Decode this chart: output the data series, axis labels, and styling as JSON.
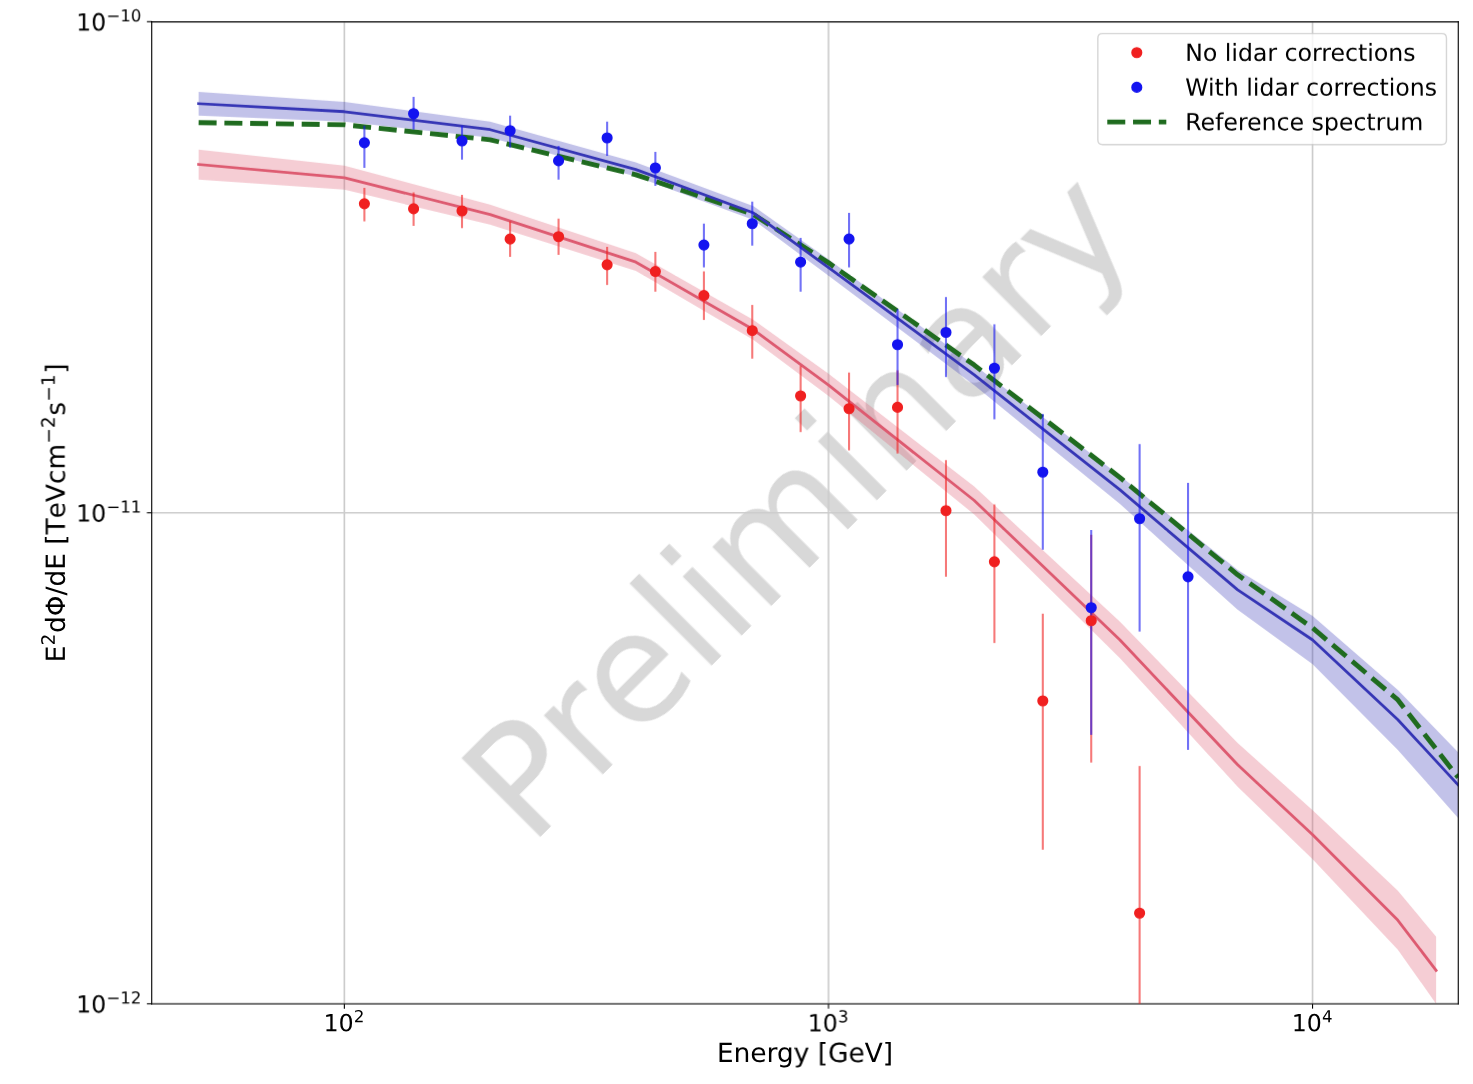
{
  "chart_data": {
    "type": "scatter",
    "xlabel": "Energy [GeV]",
    "ylabel": "E$^{2}$dΦ/dE [TeVcm$^{−2}$s$^{−1}$]",
    "log": "xy",
    "xlim": [
      40,
      20000
    ],
    "ylim": [
      1e-12,
      1e-10
    ],
    "xticks": [
      {
        "value": 100,
        "label": "10$^{2}$"
      },
      {
        "value": 1000,
        "label": "10$^{3}$"
      },
      {
        "value": 10000,
        "label": "10$^{4}$"
      }
    ],
    "yticks": [
      {
        "value": 1e-12,
        "label": "10$^{−12}$"
      },
      {
        "value": 1e-11,
        "label": "10$^{−11}$"
      },
      {
        "value": 1e-10,
        "label": "10$^{−10}$"
      }
    ],
    "grid": true,
    "legend": "top right",
    "marker": "circle",
    "annotations": [
      "Preliminary"
    ],
    "series": [
      {
        "name": "No lidar corrections",
        "color": "#f02020",
        "x": [
          110,
          139,
          175,
          220,
          277,
          349,
          439,
          553,
          696,
          876,
          1103,
          1389,
          1749,
          2202,
          2772,
          3490,
          4393
        ],
        "values": [
          4.26e-11,
          4.16e-11,
          4.12e-11,
          3.61e-11,
          3.65e-11,
          3.2e-11,
          3.1e-11,
          2.77e-11,
          2.35e-11,
          1.73e-11,
          1.63e-11,
          1.64e-11,
          1.01e-11,
          7.95e-12,
          4.14e-12,
          6.03e-12,
          1.53e-12
        ],
        "errors": [
          [
            3.92e-11,
            4.59e-11
          ],
          [
            3.84e-11,
            4.49e-11
          ],
          [
            3.8e-11,
            4.44e-11
          ],
          [
            3.32e-11,
            3.92e-11
          ],
          [
            3.35e-11,
            3.97e-11
          ],
          [
            2.91e-11,
            3.48e-11
          ],
          [
            2.82e-11,
            3.4e-11
          ],
          [
            2.47e-11,
            3.1e-11
          ],
          [
            2.06e-11,
            2.65e-11
          ],
          [
            1.46e-11,
            1.99e-11
          ],
          [
            1.34e-11,
            1.93e-11
          ],
          [
            1.32e-11,
            1.95e-11
          ],
          [
            7.41e-12,
            1.28e-11
          ],
          [
            5.43e-12,
            1.04e-11
          ],
          [
            2.06e-12,
            6.23e-12
          ],
          [
            3.1e-12,
            9.02e-12
          ],
          [
            1e-12,
            3.05e-12
          ]
        ]
      },
      {
        "name": "With lidar corrections",
        "color": "#1414f0",
        "x": [
          110,
          139,
          175,
          220,
          277,
          349,
          439,
          553,
          696,
          876,
          1103,
          1389,
          1749,
          2202,
          2772,
          3490,
          4393,
          5531
        ],
        "values": [
          5.67e-11,
          6.5e-11,
          5.72e-11,
          6e-11,
          5.21e-11,
          5.8e-11,
          5.04e-11,
          3.51e-11,
          3.88e-11,
          3.24e-11,
          3.61e-11,
          2.2e-11,
          2.33e-11,
          1.97e-11,
          1.21e-11,
          6.41e-12,
          9.73e-12,
          7.41e-12
        ],
        "errors": [
          [
            5.04e-11,
            6.14e-11
          ],
          [
            6.03e-11,
            7.03e-11
          ],
          [
            5.24e-11,
            6.14e-11
          ],
          [
            5.54e-11,
            6.44e-11
          ],
          [
            4.77e-11,
            5.59e-11
          ],
          [
            5.33e-11,
            6.26e-11
          ],
          [
            4.63e-11,
            5.43e-11
          ],
          [
            3.16e-11,
            3.88e-11
          ],
          [
            3.5e-11,
            4.3e-11
          ],
          [
            2.82e-11,
            3.63e-11
          ],
          [
            3.16e-11,
            4.08e-11
          ],
          [
            1.82e-11,
            2.6e-11
          ],
          [
            1.89e-11,
            2.75e-11
          ],
          [
            1.55e-11,
            2.42e-11
          ],
          [
            8.41e-12,
            1.59e-11
          ],
          [
            3.53e-12,
            9.23e-12
          ],
          [
            5.73e-12,
            1.38e-11
          ],
          [
            3.29e-12,
            1.15e-11
          ]
        ]
      },
      {
        "name": "Reference spectrum",
        "type": "line",
        "color": "#1f6b1f",
        "line_style": "dashed",
        "marker": "none",
        "x": [
          50,
          100,
          200,
          400,
          700,
          1000,
          2000,
          4000,
          7000,
          10000,
          15000,
          20000
        ],
        "values": [
          6.23e-11,
          6.17e-11,
          5.75e-11,
          4.88e-11,
          4.05e-11,
          3.23e-11,
          2e-11,
          1.18e-11,
          7.48e-12,
          5.83e-12,
          4.16e-12,
          2.89e-12
        ]
      },
      {
        "type": "line",
        "color": "#3535b5",
        "line_style": "solid",
        "marker": "none",
        "x": [
          50,
          100,
          200,
          400,
          700,
          1000,
          2000,
          4000,
          7000,
          10000,
          15000,
          20000
        ],
        "values": [
          6.81e-11,
          6.56e-11,
          6.03e-11,
          5e-11,
          4.08e-11,
          3.16e-11,
          1.91e-11,
          1.114e-11,
          6.97e-12,
          5.51e-12,
          3.79e-12,
          2.79e-12
        ],
        "lower": [
          6.44e-11,
          6.26e-11,
          5.81e-11,
          4.84e-11,
          3.95e-11,
          3.04e-11,
          1.82e-11,
          1.043e-11,
          6.35e-12,
          4.92e-12,
          3.29e-12,
          2.39e-12
        ],
        "upper": [
          7.2e-11,
          6.87e-11,
          6.26e-11,
          5.17e-11,
          4.21e-11,
          3.28e-11,
          2e-11,
          1.19e-11,
          7.65e-12,
          6.17e-12,
          4.36e-12,
          3.25e-12
        ]
      },
      {
        "type": "line",
        "color": "#dd5a70",
        "line_style": "solid",
        "marker": "none",
        "x": [
          50,
          100,
          200,
          400,
          700,
          1000,
          2000,
          4000,
          7000,
          10000,
          15000,
          18000
        ],
        "values": [
          5.12e-11,
          4.81e-11,
          4.05e-11,
          3.24e-11,
          2.36e-11,
          1.82e-11,
          1.06e-11,
          5.51e-12,
          3.07e-12,
          2.21e-12,
          1.48e-12,
          1.17e-12
        ],
        "lower": [
          4.77e-11,
          4.55e-11,
          3.86e-11,
          3.11e-11,
          2.25e-11,
          1.73e-11,
          9.93e-12,
          5.06e-12,
          2.77e-12,
          1.97e-12,
          1.29e-12,
          1e-12
        ],
        "upper": [
          5.49e-11,
          5.09e-11,
          4.24e-11,
          3.38e-11,
          2.47e-11,
          1.92e-11,
          1.132e-11,
          6e-12,
          3.4e-12,
          2.48e-12,
          1.7e-12,
          1.37e-12
        ]
      }
    ]
  }
}
